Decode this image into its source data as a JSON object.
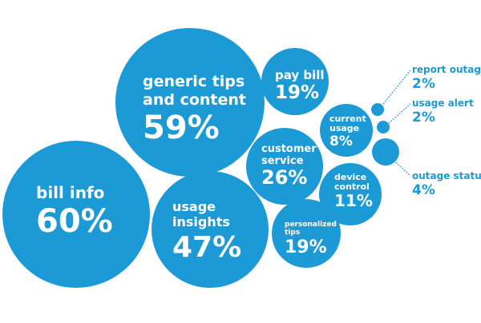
{
  "colors": {
    "bubble": "#1b9ad6",
    "text_inside": "#ffffff",
    "text_outside": "#1b9ad6"
  },
  "chart_data": {
    "type": "bubble",
    "unit": "%",
    "items": [
      {
        "label": [
          "bill info"
        ],
        "value": 60,
        "value_label": "60%"
      },
      {
        "label": [
          "generic tips",
          "and content"
        ],
        "value": 59,
        "value_label": "59%"
      },
      {
        "label": [
          "usage",
          "insights"
        ],
        "value": 47,
        "value_label": "47%"
      },
      {
        "label": [
          "pay bill"
        ],
        "value": 19,
        "value_label": "19%"
      },
      {
        "label": [
          "customer",
          "service"
        ],
        "value": 26,
        "value_label": "26%"
      },
      {
        "label": [
          "current",
          "usage"
        ],
        "value": 8,
        "value_label": "8%"
      },
      {
        "label": [
          "device",
          "control"
        ],
        "value": 11,
        "value_label": "11%"
      },
      {
        "label": [
          "personalized",
          "tips"
        ],
        "value": 19,
        "value_label": "19%"
      },
      {
        "label": [
          "report outage"
        ],
        "value": 2,
        "value_label": "2%"
      },
      {
        "label": [
          "usage alert"
        ],
        "value": 2,
        "value_label": "2%"
      },
      {
        "label": [
          "outage status"
        ],
        "value": 4,
        "value_label": "4%"
      }
    ]
  }
}
